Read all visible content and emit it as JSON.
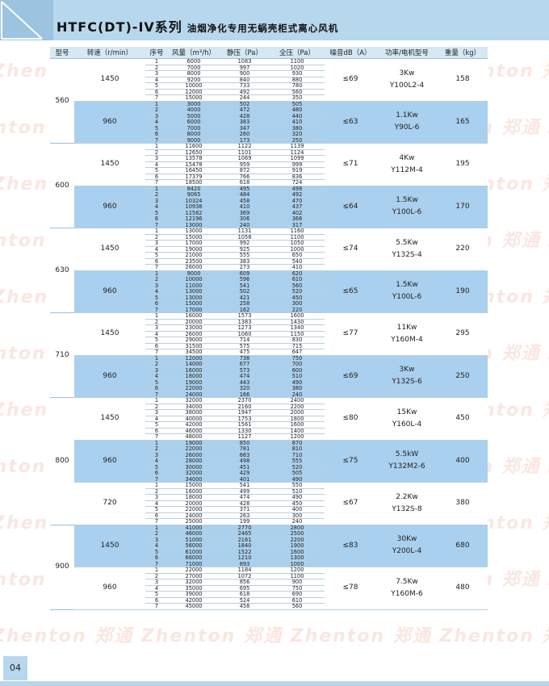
{
  "title": {
    "main": "HTFC(DT)-IV系列",
    "sub": "油烟净化专用无蜗壳柜式离心风机"
  },
  "watermark_text": "Zhenton 郑通",
  "page_number": "04",
  "colors": {
    "blue_band": "#a9d0ee",
    "header_band": "#b7d7ec",
    "header_cell": "#d5e8f4"
  },
  "table": {
    "headers": [
      "型号",
      "转速（r/min）",
      "序号",
      "风量（m³/h）",
      "静压（Pa）",
      "全压（Pa）",
      "噪音dB（A）",
      "功率/电机型号",
      "重量（kg）"
    ],
    "models": [
      {
        "model": "560",
        "groups": [
          {
            "speed": "1450",
            "noise": "≤69",
            "power": "3Kw",
            "motor": "Y100L2-4",
            "weight": "158",
            "blue": false,
            "rows": [
              [
                "1",
                "6000",
                "1083",
                "1100"
              ],
              [
                "2",
                "7000",
                "997",
                "1020"
              ],
              [
                "3",
                "8000",
                "900",
                "930"
              ],
              [
                "4",
                "9200",
                "840",
                "880"
              ],
              [
                "5",
                "10000",
                "733",
                "780"
              ],
              [
                "6",
                "12000",
                "492",
                "560"
              ],
              [
                "7",
                "15000",
                "244",
                "350"
              ]
            ]
          },
          {
            "speed": "960",
            "noise": "≤63",
            "power": "1.1Kw",
            "motor": "Y90L-6",
            "weight": "165",
            "blue": true,
            "rows": [
              [
                "1",
                "3000",
                "502",
                "505"
              ],
              [
                "2",
                "4000",
                "472",
                "480"
              ],
              [
                "3",
                "5000",
                "428",
                "440"
              ],
              [
                "4",
                "6000",
                "383",
                "410"
              ],
              [
                "5",
                "7000",
                "347",
                "380"
              ],
              [
                "6",
                "8000",
                "260",
                "320"
              ],
              [
                "7",
                "9000",
                "173",
                "250"
              ]
            ]
          }
        ]
      },
      {
        "model": "600",
        "groups": [
          {
            "speed": "1450",
            "noise": "≤71",
            "power": "4Kw",
            "motor": "Y112M-4",
            "weight": "195",
            "blue": false,
            "rows": [
              [
                "1",
                "11600",
                "1122",
                "1139"
              ],
              [
                "2",
                "12650",
                "1101",
                "1124"
              ],
              [
                "3",
                "13578",
                "1069",
                "1099"
              ],
              [
                "4",
                "15478",
                "959",
                "999"
              ],
              [
                "5",
                "16450",
                "872",
                "919"
              ],
              [
                "6",
                "17379",
                "766",
                "836"
              ],
              [
                "7",
                "18500",
                "618",
                "724"
              ]
            ]
          },
          {
            "speed": "960",
            "noise": "≤64",
            "power": "1.5Kw",
            "motor": "Y100L-6",
            "weight": "170",
            "blue": true,
            "rows": [
              [
                "1",
                "8420",
                "495",
                "498"
              ],
              [
                "2",
                "9065",
                "484",
                "492"
              ],
              [
                "3",
                "10324",
                "458",
                "470"
              ],
              [
                "4",
                "10938",
                "410",
                "437"
              ],
              [
                "5",
                "11582",
                "369",
                "402"
              ],
              [
                "6",
                "12196",
                "306",
                "366"
              ],
              [
                "7",
                "13000",
                "240",
                "317"
              ]
            ]
          }
        ]
      },
      {
        "model": "630",
        "groups": [
          {
            "speed": "1450",
            "noise": "≤74",
            "power": "5.5Kw",
            "motor": "Y132S-4",
            "weight": "220",
            "blue": false,
            "rows": [
              [
                "1",
                "13000",
                "1131",
                "1160"
              ],
              [
                "2",
                "15000",
                "1058",
                "1100"
              ],
              [
                "3",
                "17000",
                "992",
                "1050"
              ],
              [
                "4",
                "19000",
                "925",
                "1000"
              ],
              [
                "5",
                "21000",
                "555",
                "650"
              ],
              [
                "6",
                "23500",
                "383",
                "540"
              ],
              [
                "7",
                "26000",
                "273",
                "410"
              ]
            ]
          },
          {
            "speed": "960",
            "noise": "≤65",
            "power": "1.5Kw",
            "motor": "Y100L-6",
            "weight": "190",
            "blue": true,
            "rows": [
              [
                "1",
                "9000",
                "609",
                "620"
              ],
              [
                "2",
                "10000",
                "596",
                "610"
              ],
              [
                "3",
                "11000",
                "541",
                "560"
              ],
              [
                "4",
                "13000",
                "502",
                "520"
              ],
              [
                "5",
                "13000",
                "421",
                "450"
              ],
              [
                "6",
                "15000",
                "258",
                "300"
              ],
              [
                "7",
                "17000",
                "162",
                "220"
              ]
            ]
          }
        ]
      },
      {
        "model": "710",
        "groups": [
          {
            "speed": "1450",
            "noise": "≤77",
            "power": "11Kw",
            "motor": "Y160M-4",
            "weight": "295",
            "blue": false,
            "rows": [
              [
                "1",
                "16000",
                "1573",
                "1600"
              ],
              [
                "2",
                "20000",
                "1383",
                "1430"
              ],
              [
                "3",
                "23000",
                "1273",
                "1340"
              ],
              [
                "4",
                "26000",
                "1060",
                "1150"
              ],
              [
                "5",
                "29000",
                "714",
                "830"
              ],
              [
                "6",
                "31500",
                "575",
                "715"
              ],
              [
                "7",
                "34500",
                "475",
                "647"
              ]
            ]
          },
          {
            "speed": "960",
            "noise": "≤69",
            "power": "3Kw",
            "motor": "Y132S-6",
            "weight": "250",
            "blue": true,
            "rows": [
              [
                "1",
                "12000",
                "738",
                "750"
              ],
              [
                "2",
                "14000",
                "677",
                "700"
              ],
              [
                "3",
                "16000",
                "573",
                "600"
              ],
              [
                "4",
                "18000",
                "474",
                "510"
              ],
              [
                "5",
                "19000",
                "443",
                "490"
              ],
              [
                "6",
                "22000",
                "320",
                "380"
              ],
              [
                "7",
                "24000",
                "166",
                "240"
              ]
            ]
          }
        ]
      },
      {
        "model": "800",
        "groups": [
          {
            "speed": "1450",
            "noise": "≤80",
            "power": "15Kw",
            "motor": "Y160L-4",
            "weight": "450",
            "blue": false,
            "rows": [
              [
                "1",
                "32000",
                "2370",
                "2400"
              ],
              [
                "2",
                "34000",
                "2160",
                "2200"
              ],
              [
                "3",
                "38000",
                "1947",
                "2000"
              ],
              [
                "4",
                "40000",
                "1753",
                "1800"
              ],
              [
                "5",
                "42000",
                "1561",
                "1600"
              ],
              [
                "6",
                "46000",
                "1330",
                "1400"
              ],
              [
                "7",
                "48000",
                "1127",
                "1200"
              ]
            ]
          },
          {
            "speed": "960",
            "noise": "≤75",
            "power": "5.5kW",
            "motor": "Y132M2-6",
            "weight": "400",
            "blue": true,
            "rows": [
              [
                "1",
                "19000",
                "850",
                "870"
              ],
              [
                "2",
                "22000",
                "781",
                "810"
              ],
              [
                "3",
                "26000",
                "663",
                "710"
              ],
              [
                "4",
                "28000",
                "498",
                "555"
              ],
              [
                "5",
                "30000",
                "451",
                "520"
              ],
              [
                "6",
                "32000",
                "429",
                "505"
              ],
              [
                "7",
                "34000",
                "401",
                "490"
              ]
            ]
          },
          {
            "speed": "720",
            "noise": "≤67",
            "power": "2.2Kw",
            "motor": "Y132S-8",
            "weight": "380",
            "blue": false,
            "rows": [
              [
                "1",
                "15000",
                "541",
                "550"
              ],
              [
                "2",
                "16000",
                "499",
                "510"
              ],
              [
                "3",
                "18000",
                "474",
                "490"
              ],
              [
                "4",
                "20000",
                "428",
                "450"
              ],
              [
                "5",
                "22000",
                "371",
                "400"
              ],
              [
                "6",
                "24000",
                "263",
                "300"
              ],
              [
                "7",
                "25000",
                "199",
                "240"
              ]
            ]
          }
        ]
      },
      {
        "model": "900",
        "groups": [
          {
            "speed": "1450",
            "noise": "≤83",
            "power": "30Kw",
            "motor": "Y200L-4",
            "weight": "680",
            "blue": true,
            "rows": [
              [
                "1",
                "41000",
                "2770",
                "2800"
              ],
              [
                "2",
                "46000",
                "2465",
                "2500"
              ],
              [
                "3",
                "51000",
                "2161",
                "2200"
              ],
              [
                "4",
                "56000",
                "1840",
                "1900"
              ],
              [
                "5",
                "61000",
                "1522",
                "1600"
              ],
              [
                "6",
                "66000",
                "1210",
                "1300"
              ],
              [
                "7",
                "71000",
                "893",
                "1000"
              ]
            ]
          },
          {
            "speed": "960",
            "noise": "≤78",
            "power": "7.5Kw",
            "motor": "Y160M-6",
            "weight": "480",
            "blue": false,
            "rows": [
              [
                "1",
                "22000",
                "1184",
                "1200"
              ],
              [
                "2",
                "27000",
                "1072",
                "1100"
              ],
              [
                "3",
                "32000",
                "856",
                "900"
              ],
              [
                "4",
                "35000",
                "695",
                "750"
              ],
              [
                "5",
                "39000",
                "618",
                "690"
              ],
              [
                "6",
                "42000",
                "524",
                "610"
              ],
              [
                "7",
                "45000",
                "458",
                "560"
              ]
            ]
          }
        ]
      }
    ]
  }
}
